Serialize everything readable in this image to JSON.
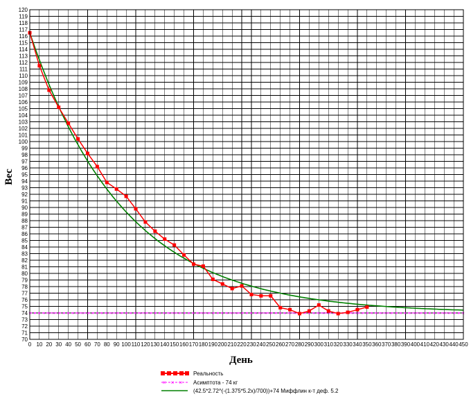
{
  "chart_data": {
    "type": "line",
    "title": "",
    "xlabel": "День",
    "ylabel": "Вес",
    "xlim": [
      0,
      450
    ],
    "ylim": [
      70,
      120
    ],
    "x_ticks": [
      0,
      10,
      20,
      30,
      40,
      50,
      60,
      70,
      80,
      90,
      100,
      110,
      120,
      130,
      140,
      150,
      160,
      170,
      180,
      190,
      200,
      210,
      220,
      230,
      240,
      250,
      260,
      270,
      280,
      290,
      300,
      310,
      320,
      330,
      340,
      350,
      360,
      370,
      380,
      390,
      400,
      410,
      420,
      430,
      440,
      450
    ],
    "y_ticks": [
      70,
      71,
      72,
      73,
      74,
      75,
      76,
      77,
      78,
      79,
      80,
      81,
      82,
      83,
      84,
      85,
      86,
      87,
      88,
      89,
      90,
      91,
      92,
      93,
      94,
      95,
      96,
      97,
      98,
      99,
      100,
      101,
      102,
      103,
      104,
      105,
      106,
      107,
      108,
      109,
      110,
      111,
      112,
      113,
      114,
      115,
      116,
      117,
      118,
      119,
      120
    ],
    "grid": true,
    "legend_position": "bottom",
    "series": [
      {
        "name": "Реальность",
        "color": "#ff0000",
        "marker": "square",
        "x": [
          0,
          10,
          20,
          30,
          40,
          50,
          60,
          70,
          80,
          90,
          100,
          110,
          120,
          130,
          140,
          150,
          160,
          170,
          180,
          190,
          200,
          210,
          220,
          230,
          240,
          250,
          260,
          270,
          280,
          290,
          300,
          310,
          320,
          330,
          340,
          350
        ],
        "y": [
          116.5,
          111.5,
          107.8,
          105.2,
          102.8,
          100.4,
          98.2,
          96.2,
          93.8,
          92.8,
          91.7,
          89.8,
          87.8,
          86.4,
          85.2,
          84.3,
          82.8,
          81.4,
          81.1,
          79.1,
          78.4,
          77.7,
          78.1,
          76.8,
          76.6,
          76.6,
          74.8,
          74.5,
          73.9,
          74.3,
          75.2,
          74.3,
          73.9,
          74.1,
          74.5,
          74.9
        ]
      },
      {
        "name": "Асимптота - 74 кг",
        "color": "#ff00ff",
        "marker": "cross",
        "dashed": true,
        "constant": 74
      },
      {
        "name": "(42.5*2.72^(-(1.375*5.2x)/700))+74 Миффлин к-т деф. 5.2",
        "color": "#008000",
        "marker": "none",
        "function": {
          "asymptote": 74,
          "amplitude": 42.5,
          "rate": 0.0102
        }
      }
    ]
  }
}
